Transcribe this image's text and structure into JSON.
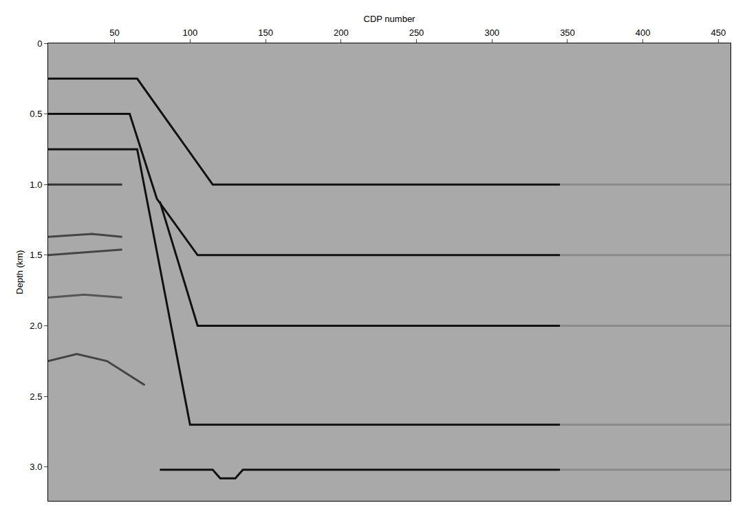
{
  "chart_data": {
    "type": "line",
    "x_label": "CDP number",
    "y_label": "Depth (km)",
    "xlim": [
      6,
      458
    ],
    "ylim": [
      3.24,
      0
    ],
    "xticks": [
      50,
      100,
      150,
      200,
      250,
      300,
      350,
      400,
      450
    ],
    "yticks": [
      0,
      0.5,
      {
        "value": 1,
        "label": "1.0"
      },
      1.5,
      {
        "value": 2,
        "label": "2.0"
      },
      2.5,
      {
        "value": 3,
        "label": "3.0"
      }
    ],
    "grid": false,
    "series": [
      {
        "color": "#111111",
        "x": [
          6,
          65,
          115,
          345
        ],
        "values": [
          0.25,
          0.25,
          1.0,
          1.0
        ]
      },
      {
        "color": "#111111",
        "x": [
          6,
          60,
          78,
          105,
          345
        ],
        "values": [
          0.5,
          0.5,
          1.1,
          1.5,
          1.5
        ]
      },
      {
        "color": "#111111",
        "x": [
          6,
          65,
          100,
          345
        ],
        "values": [
          0.75,
          0.75,
          2.7,
          2.7
        ]
      },
      {
        "color": "#111111",
        "x": [
          80,
          105,
          345
        ],
        "values": [
          1.12,
          2.0,
          2.0
        ]
      },
      {
        "color": "#111111",
        "x": [
          80,
          115,
          120,
          130,
          135,
          345
        ],
        "values": [
          3.02,
          3.02,
          3.08,
          3.08,
          3.02,
          3.02
        ]
      },
      {
        "color": "#333333",
        "x": [
          6,
          55
        ],
        "values": [
          1.0,
          1.0
        ]
      },
      {
        "color": "#444444",
        "x": [
          6,
          30,
          55
        ],
        "values": [
          1.5,
          1.48,
          1.46
        ]
      },
      {
        "color": "#555555",
        "x": [
          6,
          30,
          55
        ],
        "values": [
          1.8,
          1.78,
          1.8
        ]
      },
      {
        "color": "#444444",
        "x": [
          6,
          25,
          45,
          70
        ],
        "values": [
          2.25,
          2.2,
          2.25,
          2.42
        ]
      },
      {
        "color": "#444444",
        "x": [
          6,
          35,
          55
        ],
        "values": [
          1.37,
          1.35,
          1.37
        ]
      },
      {
        "color": "#8a8a8a",
        "x": [
          345,
          458
        ],
        "values": [
          1.0,
          1.0
        ]
      },
      {
        "color": "#8a8a8a",
        "x": [
          345,
          458
        ],
        "values": [
          1.5,
          1.5
        ]
      },
      {
        "color": "#8a8a8a",
        "x": [
          345,
          458
        ],
        "values": [
          2.0,
          2.0
        ]
      },
      {
        "color": "#8a8a8a",
        "x": [
          345,
          458
        ],
        "values": [
          2.7,
          2.7
        ]
      },
      {
        "color": "#8a8a8a",
        "x": [
          345,
          458
        ],
        "values": [
          3.02,
          3.02
        ]
      }
    ]
  }
}
